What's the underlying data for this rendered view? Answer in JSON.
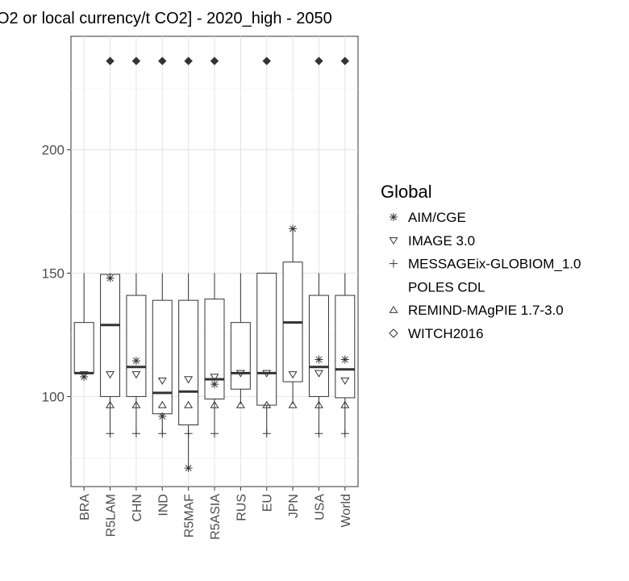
{
  "chart_data": {
    "type": "boxplot",
    "title": "O2 or local currency/t CO2] - 2020_high - 2050",
    "xlabel": "",
    "ylabel": "",
    "categories": [
      "BRA",
      "R5LAM",
      "CHN",
      "IND",
      "R5MAF",
      "R5ASIA",
      "RUS",
      "EU",
      "JPN",
      "USA",
      "World"
    ],
    "ylim": [
      63.5,
      246
    ],
    "yticks": [
      100,
      150,
      200
    ],
    "grid": true,
    "legend": {
      "title": "Global",
      "placement": "right",
      "entries": [
        {
          "name": "AIM/CGE",
          "symbol": "asterisk"
        },
        {
          "name": "IMAGE 3.0",
          "symbol": "triangle-down"
        },
        {
          "name": "MESSAGEix-GLOBIOM_1.0",
          "symbol": "plus"
        },
        {
          "name": "POLES CDL",
          "symbol": "none"
        },
        {
          "name": "REMIND-MAgPIE 1.7-3.0",
          "symbol": "triangle-up"
        },
        {
          "name": "WITCH2016",
          "symbol": "diamond"
        }
      ]
    },
    "boxes": [
      {
        "category": "BRA",
        "low": 109.5,
        "q1": 109.5,
        "median": 109.5,
        "q3": 130,
        "high": 150
      },
      {
        "category": "R5LAM",
        "low": 85,
        "q1": 100,
        "median": 129,
        "q3": 149.5,
        "high": 150
      },
      {
        "category": "CHN",
        "low": 85,
        "q1": 100,
        "median": 112,
        "q3": 141,
        "high": 150
      },
      {
        "category": "IND",
        "low": 85,
        "q1": 93,
        "median": 101.5,
        "q3": 139,
        "high": 150
      },
      {
        "category": "R5MAF",
        "low": 71,
        "q1": 88.5,
        "median": 102,
        "q3": 139,
        "high": 150
      },
      {
        "category": "R5ASIA",
        "low": 85,
        "q1": 99,
        "median": 107,
        "q3": 139.5,
        "high": 150
      },
      {
        "category": "RUS",
        "low": 97,
        "q1": 103,
        "median": 109.5,
        "q3": 130,
        "high": 150
      },
      {
        "category": "EU",
        "low": 85,
        "q1": 96.5,
        "median": 109.5,
        "q3": 150,
        "high": 150
      },
      {
        "category": "JPN",
        "low": 97,
        "q1": 106,
        "median": 130,
        "q3": 154.5,
        "high": 168
      },
      {
        "category": "USA",
        "low": 85,
        "q1": 100,
        "median": 112,
        "q3": 141,
        "high": 150
      },
      {
        "category": "World",
        "low": 85,
        "q1": 99.5,
        "median": 111,
        "q3": 141,
        "high": 150
      }
    ],
    "series": [
      {
        "name": "AIM/CGE",
        "symbol": "asterisk",
        "values": [
          108,
          148,
          114.5,
          92,
          71,
          105,
          null,
          null,
          168,
          115,
          115
        ]
      },
      {
        "name": "IMAGE 3.0",
        "symbol": "triangle-down",
        "values": [
          109,
          109,
          109,
          106.5,
          107,
          108,
          109.5,
          109.5,
          109,
          109.5,
          106.5
        ]
      },
      {
        "name": "MESSAGEix-GLOBIOM_1.0",
        "symbol": "plus",
        "values": [
          null,
          85,
          85,
          85,
          85,
          85,
          null,
          85,
          null,
          85,
          85
        ]
      },
      {
        "name": "REMIND-MAgPIE 1.7-3.0",
        "symbol": "triangle-up",
        "values": [
          null,
          96.5,
          96.5,
          96.5,
          96.5,
          96.5,
          96.5,
          96.5,
          96.5,
          96.5,
          96.5
        ]
      },
      {
        "name": "WITCH2016",
        "symbol": "diamond-filled",
        "values": [
          null,
          236,
          236,
          236,
          236,
          236,
          null,
          236,
          null,
          236,
          236
        ]
      }
    ]
  }
}
